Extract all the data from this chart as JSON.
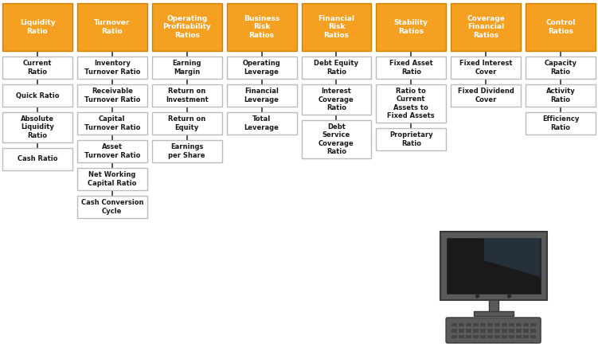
{
  "background_color": "#FFFFFF",
  "orange_color": "#F5A020",
  "orange_border": "#D08000",
  "white_box_color": "#FFFFFF",
  "white_box_border": "#BBBBBB",
  "text_color_dark": "#1a1a1a",
  "line_color": "#333333",
  "columns": [
    {
      "header": "Liquidity\nRatio",
      "items": [
        "Current\nRatio",
        "Quick Ratio",
        "Absolute\nLiquidity\nRatio",
        "Cash Ratio"
      ]
    },
    {
      "header": "Turnover\nRatio",
      "items": [
        "Inventory\nTurnover Ratio",
        "Receivable\nTurnover Ratio",
        "Capital\nTurnover Ratio",
        "Asset\nTurnover Ratio",
        "Net Working\nCapital Ratio",
        "Cash Conversion\nCycle"
      ]
    },
    {
      "header": "Operating\nProfitability\nRatios",
      "items": [
        "Earning\nMargin",
        "Return on\nInvestment",
        "Return on\nEquity",
        "Earnings\nper Share"
      ]
    },
    {
      "header": "Business\nRisk\nRatios",
      "items": [
        "Operating\nLeverage",
        "Financial\nLeverage",
        "Total\nLeverage"
      ]
    },
    {
      "header": "Financial\nRisk\nRatios",
      "items": [
        "Debt Equity\nRatio",
        "Interest\nCoverage\nRatio",
        "Debt\nService\nCoverage\nRatio"
      ]
    },
    {
      "header": "Stability\nRatios",
      "items": [
        "Fixed Asset\nRatio",
        "Ratio to\nCurrent\nAssets to\nFixed Assets",
        "Proprietary\nRatio"
      ]
    },
    {
      "header": "Coverage\nFinancial\nRatios",
      "items": [
        "Fixed Interest\nCover",
        "Fixed Dividend\nCover"
      ]
    },
    {
      "header": "Control\nRatios",
      "items": [
        "Capacity\nRatio",
        "Activity\nRatio",
        "Efficiency\nRatio"
      ]
    }
  ],
  "figsize": [
    7.51,
    4.41
  ],
  "dpi": 100
}
